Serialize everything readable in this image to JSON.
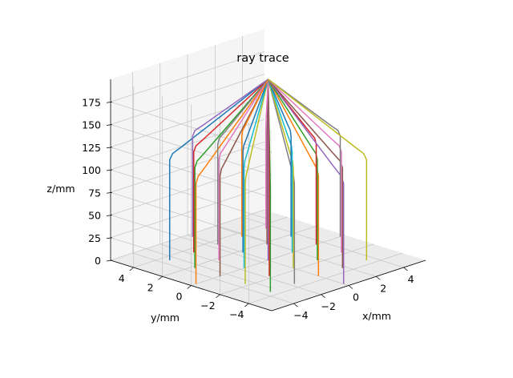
{
  "chart_data": {
    "type": "line",
    "projection": "3d",
    "title": "ray trace",
    "xlabel": "x/mm",
    "ylabel": "y/mm",
    "zlabel": "z/mm",
    "xlim": [
      -5.6,
      5.6
    ],
    "ylim": [
      -5.6,
      5.6
    ],
    "zlim": [
      0,
      200
    ],
    "xticks": [
      -4,
      -2,
      0,
      2,
      4
    ],
    "yticks": [
      -4,
      -2,
      0,
      2,
      4
    ],
    "zticks": [
      0,
      25,
      50,
      75,
      100,
      125,
      150,
      175
    ],
    "grid": true,
    "source_point": {
      "x": 0,
      "y": 0,
      "z": 200
    },
    "refraction_height": 115,
    "grid_spacing": 1.75,
    "grid_range": [
      -5.25,
      5.25
    ],
    "colors": [
      "#1f77b4",
      "#ff7f0e",
      "#2ca02c",
      "#d62728",
      "#9467bd",
      "#8c564b",
      "#e377c2",
      "#7f7f7f",
      "#bcbd22",
      "#17becf"
    ]
  }
}
